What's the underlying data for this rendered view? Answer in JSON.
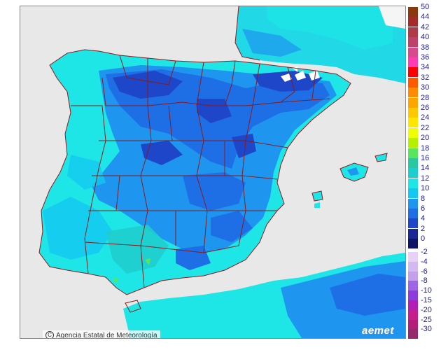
{
  "map": {
    "credit_text": "Agencia Estatal de Meteorología",
    "logo_text": "aemet",
    "colors": {
      "sea": "#e8e8e8",
      "land_base": "#1ee6e6",
      "border": "#8b1a1a",
      "snow": "#ffffff"
    }
  },
  "legend": {
    "positive": [
      {
        "label": "50",
        "color": "#8b3a0e"
      },
      {
        "label": "44",
        "color": "#a52a2a"
      },
      {
        "label": "42",
        "color": "#b03a48"
      },
      {
        "label": "40",
        "color": "#c0406a"
      },
      {
        "label": "38",
        "color": "#d84a8c"
      },
      {
        "label": "36",
        "color": "#ff3cb4"
      },
      {
        "label": "34",
        "color": "#ff0000"
      },
      {
        "label": "32",
        "color": "#ff5a00"
      },
      {
        "label": "30",
        "color": "#ff8c00"
      },
      {
        "label": "28",
        "color": "#ffa500"
      },
      {
        "label": "26",
        "color": "#ffc800"
      },
      {
        "label": "24",
        "color": "#ffe600"
      },
      {
        "label": "22",
        "color": "#f0ff00"
      },
      {
        "label": "20",
        "color": "#b4f000"
      },
      {
        "label": "18",
        "color": "#5ae65a"
      },
      {
        "label": "16",
        "color": "#28c8a0"
      },
      {
        "label": "14",
        "color": "#1ecdcd"
      },
      {
        "label": "12",
        "color": "#1ee6e6"
      },
      {
        "label": "10",
        "color": "#14c8f0"
      },
      {
        "label": "8",
        "color": "#1e96f0"
      },
      {
        "label": "6",
        "color": "#1e6ee6"
      },
      {
        "label": "4",
        "color": "#1e46c8"
      },
      {
        "label": "2",
        "color": "#1a2896"
      },
      {
        "label": "0",
        "color": "#101464"
      }
    ],
    "negative": [
      {
        "label": "-2",
        "color": "#e6d2f5"
      },
      {
        "label": "-4",
        "color": "#d2b9f0"
      },
      {
        "label": "-6",
        "color": "#c3a0eb"
      },
      {
        "label": "-8",
        "color": "#a064e6"
      },
      {
        "label": "-10",
        "color": "#8c3cdc"
      },
      {
        "label": "-15",
        "color": "#b41eb4"
      },
      {
        "label": "-20",
        "color": "#c81e8c"
      },
      {
        "label": "-25",
        "color": "#b41e78"
      },
      {
        "label": "-30",
        "color": "#96286e"
      }
    ]
  }
}
